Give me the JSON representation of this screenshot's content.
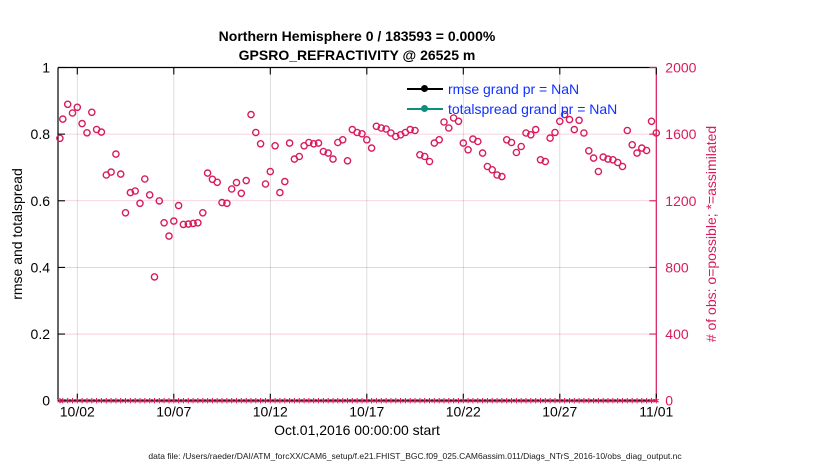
{
  "title": {
    "line1": "Northern Hemisphere 0 / 183593 = 0.000%",
    "line2": "GPSRO_REFRACTIVITY @ 26525 m"
  },
  "caption": "data file: /Users/raeder/DAI/ATM_forcXX/CAM6_setup/f.e21.FHIST_BGC.f09_025.CAM6assim.011/Diags_NTrS_2016-10/obs_diag_output.nc",
  "chart_data": {
    "type": "scatter",
    "title": "Northern Hemisphere 0 / 183593 = 0.000%",
    "subtitle": "GPSRO_REFRACTIVITY @ 26525 m",
    "xlabel": "Oct.01,2016 00:00:00 start",
    "ylabel_left": "rmse and totalspread",
    "ylabel_right": "# of obs: o=possible; *=assimilated",
    "x_axis": {
      "range_days": [
        0,
        31
      ],
      "start": "Oct.01,2016 00:00:00",
      "tick_labels": [
        "10/02",
        "10/07",
        "10/12",
        "10/17",
        "10/22",
        "10/27",
        "11/01"
      ],
      "tick_days": [
        1,
        6,
        11,
        16,
        21,
        26,
        31
      ]
    },
    "y_left": {
      "range": [
        0,
        1
      ],
      "ticks": [
        "0",
        "0.2",
        "0.4",
        "0.6",
        "0.8",
        "1"
      ],
      "color": "#000000"
    },
    "y_right": {
      "range": [
        0,
        2000
      ],
      "ticks": [
        "0",
        "400",
        "800",
        "1200",
        "1600",
        "2000"
      ],
      "color": "#d81b5e"
    },
    "grid": true,
    "grid_h_color": "rgba(216,27,94,0.25)",
    "grid_v_color": "rgba(0,0,0,0.17)",
    "legend_text_color": "#0f31ff",
    "legend": [
      {
        "label": "rmse grand pr = NaN",
        "color": "#000000",
        "marker": "filled-circle"
      },
      {
        "label": "totalspread grand pr = NaN",
        "color": "#0e8d80",
        "marker": "filled-circle"
      }
    ],
    "series": [
      {
        "name": "# of obs possible",
        "marker": "o",
        "color": "#d81b5e",
        "axis": "right",
        "points": [
          [
            0.1,
            1575
          ],
          [
            0.25,
            1690
          ],
          [
            0.5,
            1779
          ],
          [
            0.75,
            1727
          ],
          [
            1,
            1761
          ],
          [
            1.25,
            1663
          ],
          [
            1.5,
            1608
          ],
          [
            1.75,
            1731
          ],
          [
            2,
            1628
          ],
          [
            2.25,
            1612
          ],
          [
            2.5,
            1355
          ],
          [
            2.75,
            1372
          ],
          [
            3,
            1480
          ],
          [
            3.25,
            1360
          ],
          [
            3.5,
            1128
          ],
          [
            3.75,
            1249
          ],
          [
            4,
            1259
          ],
          [
            4.25,
            1185
          ],
          [
            4.5,
            1331
          ],
          [
            4.75,
            1235
          ],
          [
            5,
            743
          ],
          [
            5.25,
            1199
          ],
          [
            5.5,
            1068
          ],
          [
            5.75,
            988
          ],
          [
            6,
            1078
          ],
          [
            6.25,
            1171
          ],
          [
            6.5,
            1058
          ],
          [
            6.75,
            1060
          ],
          [
            7,
            1064
          ],
          [
            7.25,
            1068
          ],
          [
            7.5,
            1128
          ],
          [
            7.75,
            1366
          ],
          [
            8,
            1329
          ],
          [
            8.25,
            1311
          ],
          [
            8.5,
            1189
          ],
          [
            8.75,
            1185
          ],
          [
            9,
            1271
          ],
          [
            9.25,
            1309
          ],
          [
            9.5,
            1245
          ],
          [
            9.75,
            1321
          ],
          [
            10,
            1717
          ],
          [
            10.25,
            1610
          ],
          [
            10.5,
            1542
          ],
          [
            10.75,
            1301
          ],
          [
            11,
            1375
          ],
          [
            11.25,
            1530
          ],
          [
            11.5,
            1249
          ],
          [
            11.75,
            1315
          ],
          [
            12,
            1546
          ],
          [
            12.25,
            1450
          ],
          [
            12.5,
            1466
          ],
          [
            12.75,
            1530
          ],
          [
            13,
            1550
          ],
          [
            13.25,
            1542
          ],
          [
            13.5,
            1546
          ],
          [
            13.75,
            1496
          ],
          [
            14,
            1486
          ],
          [
            14.25,
            1450
          ],
          [
            14.5,
            1550
          ],
          [
            14.75,
            1566
          ],
          [
            15,
            1440
          ],
          [
            15.25,
            1627
          ],
          [
            15.5,
            1610
          ],
          [
            15.75,
            1602
          ],
          [
            16,
            1566
          ],
          [
            16.25,
            1516
          ],
          [
            16.5,
            1647
          ],
          [
            16.75,
            1637
          ],
          [
            17,
            1631
          ],
          [
            17.25,
            1607
          ],
          [
            17.5,
            1586
          ],
          [
            17.75,
            1596
          ],
          [
            18,
            1610
          ],
          [
            18.25,
            1627
          ],
          [
            18.5,
            1622
          ],
          [
            18.75,
            1476
          ],
          [
            19,
            1466
          ],
          [
            19.25,
            1436
          ],
          [
            19.5,
            1546
          ],
          [
            19.75,
            1566
          ],
          [
            20,
            1673
          ],
          [
            20.25,
            1637
          ],
          [
            20.5,
            1697
          ],
          [
            20.75,
            1677
          ],
          [
            21,
            1546
          ],
          [
            21.25,
            1506
          ],
          [
            21.5,
            1570
          ],
          [
            21.75,
            1556
          ],
          [
            22,
            1486
          ],
          [
            22.25,
            1406
          ],
          [
            22.5,
            1386
          ],
          [
            22.75,
            1355
          ],
          [
            23,
            1345
          ],
          [
            23.25,
            1566
          ],
          [
            23.5,
            1550
          ],
          [
            23.75,
            1490
          ],
          [
            24,
            1526
          ],
          [
            24.25,
            1607
          ],
          [
            24.5,
            1596
          ],
          [
            24.75,
            1627
          ],
          [
            25,
            1446
          ],
          [
            25.25,
            1436
          ],
          [
            25.5,
            1576
          ],
          [
            25.75,
            1610
          ],
          [
            26,
            1677
          ],
          [
            26.25,
            1717
          ],
          [
            26.5,
            1687
          ],
          [
            26.75,
            1627
          ],
          [
            27,
            1683
          ],
          [
            27.25,
            1607
          ],
          [
            27.5,
            1500
          ],
          [
            27.75,
            1456
          ],
          [
            28,
            1376
          ],
          [
            28.25,
            1462
          ],
          [
            28.5,
            1450
          ],
          [
            28.75,
            1446
          ],
          [
            29,
            1430
          ],
          [
            29.25,
            1406
          ],
          [
            29.5,
            1622
          ],
          [
            29.75,
            1536
          ],
          [
            30,
            1486
          ],
          [
            30.25,
            1516
          ],
          [
            30.5,
            1502
          ],
          [
            30.75,
            1677
          ],
          [
            31,
            1607
          ]
        ]
      },
      {
        "name": "# of obs assimilated",
        "marker": "*",
        "color": "#d81b5e",
        "axis": "right",
        "constant_value": 0
      },
      {
        "name": "rmse",
        "color": "#000000",
        "axis": "left",
        "points": [],
        "grand": "NaN"
      },
      {
        "name": "totalspread",
        "color": "#0e8d80",
        "axis": "left",
        "points": [],
        "grand": "NaN"
      }
    ]
  }
}
